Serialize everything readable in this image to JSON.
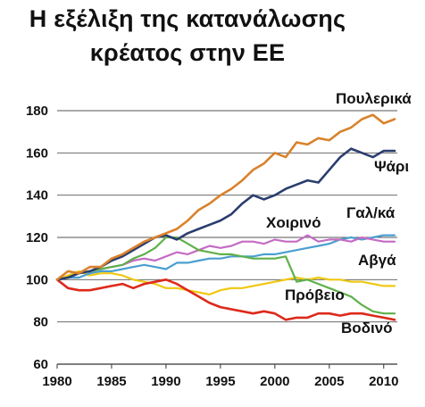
{
  "chart_data": {
    "type": "line",
    "title_line1": "Η εξέλιξη της κατανάλωσης",
    "title_line2": "κρέατος στην ΕΕ",
    "xlabel": "",
    "ylabel": "",
    "xlim": [
      1980,
      2011
    ],
    "ylim": [
      60,
      180
    ],
    "x_ticks": [
      1980,
      1985,
      1990,
      1995,
      2000,
      2005,
      2010
    ],
    "y_ticks": [
      60,
      80,
      100,
      120,
      140,
      160,
      180
    ],
    "grid": "horizontal",
    "x": [
      1980,
      1981,
      1982,
      1983,
      1984,
      1985,
      1986,
      1987,
      1988,
      1989,
      1990,
      1991,
      1992,
      1993,
      1994,
      1995,
      1996,
      1997,
      1998,
      1999,
      2000,
      2001,
      2002,
      2003,
      2004,
      2005,
      2006,
      2007,
      2008,
      2009,
      2010,
      2011
    ],
    "series": [
      {
        "name": "Πουλερικά",
        "color": "#d9822b",
        "values": [
          100,
          104,
          103,
          106,
          106,
          110,
          112,
          115,
          118,
          120,
          122,
          124,
          128,
          133,
          136,
          140,
          143,
          147,
          152,
          155,
          160,
          158,
          165,
          164,
          167,
          166,
          170,
          172,
          176,
          178,
          174,
          176
        ]
      },
      {
        "name": "Ψάρι",
        "color": "#2a3d6e",
        "values": [
          100,
          101,
          103,
          104,
          106,
          109,
          111,
          114,
          117,
          120,
          121,
          119,
          122,
          124,
          126,
          128,
          131,
          136,
          140,
          138,
          140,
          143,
          145,
          147,
          146,
          152,
          158,
          162,
          160,
          158,
          161,
          161
        ]
      },
      {
        "name": "Χοιρινό",
        "color": "#c46bc4",
        "values": [
          100,
          101,
          103,
          104,
          105,
          106,
          107,
          109,
          110,
          109,
          111,
          113,
          112,
          114,
          116,
          115,
          116,
          118,
          118,
          117,
          119,
          118,
          118,
          121,
          118,
          119,
          119,
          118,
          120,
          119,
          118,
          118
        ]
      },
      {
        "name": "Γαλ/κά",
        "color": "#4a9fd0",
        "values": [
          100,
          101,
          101,
          103,
          104,
          104,
          105,
          106,
          107,
          106,
          105,
          108,
          108,
          109,
          110,
          110,
          111,
          111,
          111,
          112,
          112,
          113,
          114,
          115,
          116,
          117,
          119,
          120,
          119,
          120,
          121,
          121
        ]
      },
      {
        "name": "Αβγά",
        "color": "#f0c810",
        "values": [
          100,
          102,
          104,
          102,
          103,
          103,
          102,
          100,
          99,
          98,
          96,
          96,
          95,
          94,
          93,
          95,
          96,
          96,
          97,
          98,
          99,
          100,
          101,
          100,
          101,
          100,
          100,
          99,
          99,
          98,
          97,
          97
        ]
      },
      {
        "name": "Πρόβειο",
        "color": "#5eb04a",
        "values": [
          100,
          101,
          103,
          104,
          105,
          106,
          107,
          110,
          112,
          115,
          120,
          120,
          117,
          114,
          113,
          112,
          112,
          111,
          110,
          110,
          110,
          111,
          99,
          100,
          98,
          96,
          94,
          92,
          88,
          85,
          84,
          84
        ]
      },
      {
        "name": "Βοδινό",
        "color": "#dd2a1b",
        "values": [
          100,
          96,
          95,
          95,
          96,
          97,
          98,
          96,
          98,
          99,
          100,
          98,
          95,
          92,
          89,
          87,
          86,
          85,
          84,
          85,
          84,
          81,
          82,
          82,
          84,
          84,
          83,
          84,
          84,
          83,
          82,
          81
        ]
      }
    ]
  }
}
